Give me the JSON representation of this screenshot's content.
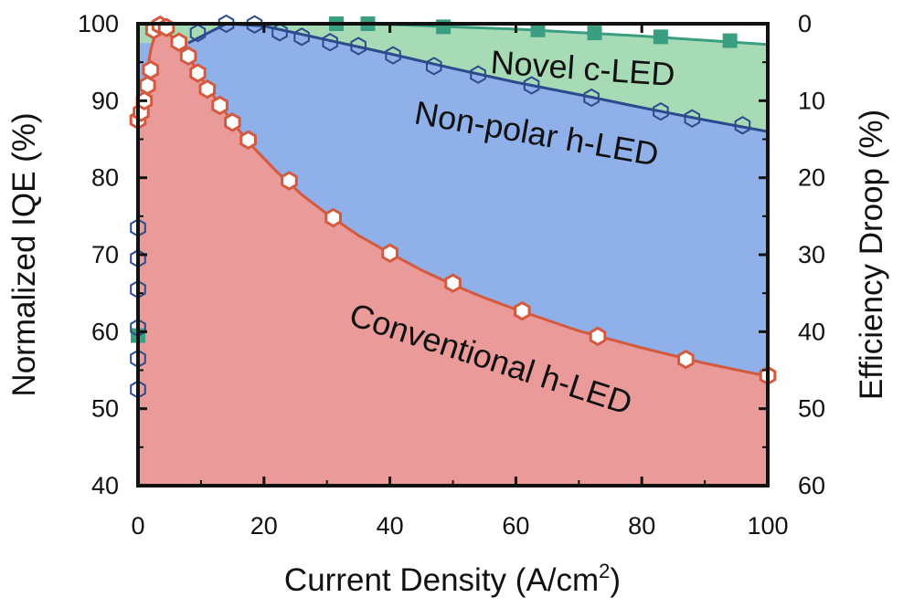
{
  "chart_data": {
    "type": "area",
    "xlabel": "Current Density (A/cm",
    "xlabel_sup": "2",
    "xlabel_close": ")",
    "ylabel": "Normalized IQE (%)",
    "y2label": "Efficiency Droop (%)",
    "xlim": [
      0,
      100
    ],
    "ylim": [
      40,
      100
    ],
    "y2lim": [
      0,
      60
    ],
    "y2_inverted": true,
    "x_ticks": [
      0,
      20,
      40,
      60,
      80,
      100
    ],
    "y_ticks": [
      40,
      50,
      60,
      70,
      80,
      90,
      100
    ],
    "y2_ticks": [
      60,
      50,
      40,
      30,
      20,
      10,
      0
    ],
    "grid": false,
    "legend": "none",
    "series": [
      {
        "name": "Novel c-LED",
        "color": "#3a9e80",
        "fill": "#a7dbb6",
        "marker": "square",
        "x": [
          0,
          31.5,
          36.5,
          48.5,
          63.5,
          72.5,
          83,
          94
        ],
        "y": [
          59.5,
          100.0,
          100.0,
          99.6,
          99.2,
          98.8,
          98.3,
          97.8
        ],
        "curve_x": [
          0,
          20,
          40,
          60,
          80,
          100
        ],
        "curve_y": [
          100.0,
          100.0,
          99.9,
          99.3,
          98.4,
          97.3
        ]
      },
      {
        "name": "Non-polar h-LED",
        "color": "#2d4a8c",
        "fill": "#8fb0e8",
        "marker": "hexagon-open",
        "x": [
          0,
          0,
          0,
          0,
          0,
          0,
          9.5,
          14,
          18.5,
          22.5,
          26,
          30.5,
          35,
          40.5,
          47,
          54,
          62.5,
          72,
          83,
          88,
          96
        ],
        "y": [
          52.5,
          56.5,
          60.5,
          65.5,
          69.5,
          73.5,
          98.8,
          100.0,
          99.9,
          98.9,
          98.3,
          97.6,
          97.1,
          95.9,
          94.5,
          93.4,
          92.0,
          90.4,
          88.6,
          87.7,
          86.8
        ],
        "curve_x": [
          8,
          14,
          20,
          30,
          40,
          50,
          60,
          70,
          80,
          90,
          100
        ],
        "curve_y": [
          97.5,
          100.0,
          99.7,
          97.9,
          96.1,
          94.2,
          92.4,
          90.8,
          89.1,
          87.5,
          86.0
        ]
      },
      {
        "name": "Conventional h-LED",
        "color": "#d45a3f",
        "fill": "#eb9a9a",
        "marker": "hexagon-white",
        "x": [
          0,
          0.5,
          1,
          1.5,
          2,
          2.5,
          3.5,
          4.5,
          6.5,
          8,
          9.5,
          11,
          13,
          15,
          17.5,
          24,
          31,
          40,
          50,
          61,
          73,
          87,
          100
        ],
        "y": [
          87.5,
          88.5,
          90,
          92,
          94,
          99.2,
          99.8,
          99.5,
          97.6,
          95.8,
          93.6,
          91.5,
          89.4,
          87.2,
          84.9,
          79.6,
          74.8,
          70.2,
          66.3,
          62.7,
          59.4,
          56.4,
          54.3
        ],
        "curve_x": [
          0,
          1,
          2,
          3,
          4,
          6,
          8,
          10,
          12,
          15,
          18,
          22,
          26,
          30,
          35,
          40,
          45,
          50,
          55,
          60,
          70,
          80,
          90,
          100
        ],
        "curve_y": [
          86.5,
          91.5,
          96.5,
          99.6,
          99.3,
          97.9,
          95.8,
          93.0,
          90.6,
          87.2,
          84.2,
          80.8,
          77.8,
          75.3,
          72.5,
          70.2,
          68.0,
          66.1,
          64.4,
          62.9,
          60.1,
          57.9,
          55.9,
          54.2
        ]
      }
    ],
    "annotations": [
      "Novel c-LED",
      "Non-polar h-LED",
      "Conventional h-LED"
    ]
  }
}
